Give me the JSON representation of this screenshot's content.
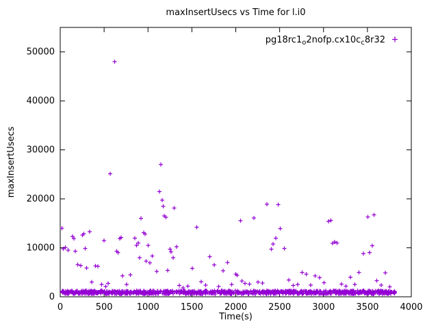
{
  "page": {
    "title": "maxInsertUsecs vs Time for l.i0"
  },
  "chart_data": {
    "type": "scatter",
    "title": "maxInsertUsecs vs Time for l.i0",
    "xlabel": "Time(s)",
    "ylabel": "maxInsertUsecs",
    "xlim": [
      0,
      4000
    ],
    "ylim": [
      0,
      55000
    ],
    "x_ticks": [
      0,
      500,
      1000,
      1500,
      2000,
      2500,
      3000,
      3500,
      4000
    ],
    "y_ticks": [
      0,
      10000,
      20000,
      30000,
      40000,
      50000
    ],
    "grid": false,
    "legend_position": "top-right-inside",
    "border_color": "#000000",
    "series": [
      {
        "name": "pg18rc1_o2nofp.cx10c_c8r32",
        "name_segments": [
          {
            "text": "pg18rc1",
            "sub": false
          },
          {
            "text": "o",
            "sub": true
          },
          {
            "text": "2nofp.cx10c",
            "sub": false
          },
          {
            "text": "c",
            "sub": true
          },
          {
            "text": "8r32",
            "sub": false
          }
        ],
        "marker": "plus",
        "color": "#9400d3",
        "outliers": [
          [
            20,
            14000
          ],
          [
            35,
            9800
          ],
          [
            60,
            10100
          ],
          [
            90,
            9500
          ],
          [
            140,
            12300
          ],
          [
            155,
            11900
          ],
          [
            170,
            9300
          ],
          [
            200,
            6600
          ],
          [
            235,
            6400
          ],
          [
            255,
            12600
          ],
          [
            270,
            12900
          ],
          [
            285,
            9900
          ],
          [
            300,
            5900
          ],
          [
            335,
            13300
          ],
          [
            360,
            3000
          ],
          [
            400,
            6300
          ],
          [
            430,
            6200
          ],
          [
            470,
            2500
          ],
          [
            500,
            11500
          ],
          [
            520,
            2100
          ],
          [
            545,
            2700
          ],
          [
            570,
            25100
          ],
          [
            620,
            48000
          ],
          [
            645,
            9300
          ],
          [
            660,
            9000
          ],
          [
            680,
            11900
          ],
          [
            695,
            12100
          ],
          [
            710,
            4300
          ],
          [
            755,
            2500
          ],
          [
            800,
            4500
          ],
          [
            850,
            12000
          ],
          [
            870,
            10500
          ],
          [
            890,
            11000
          ],
          [
            905,
            8000
          ],
          [
            920,
            16000
          ],
          [
            950,
            13100
          ],
          [
            965,
            12800
          ],
          [
            980,
            7300
          ],
          [
            1000,
            10500
          ],
          [
            1020,
            6900
          ],
          [
            1050,
            8300
          ],
          [
            1100,
            5200
          ],
          [
            1130,
            21500
          ],
          [
            1145,
            27000
          ],
          [
            1160,
            19700
          ],
          [
            1175,
            18500
          ],
          [
            1185,
            16500
          ],
          [
            1205,
            16200
          ],
          [
            1225,
            5400
          ],
          [
            1250,
            9700
          ],
          [
            1265,
            9200
          ],
          [
            1285,
            8000
          ],
          [
            1300,
            18100
          ],
          [
            1325,
            10200
          ],
          [
            1355,
            2300
          ],
          [
            1400,
            1800
          ],
          [
            1455,
            2200
          ],
          [
            1505,
            5800
          ],
          [
            1555,
            14200
          ],
          [
            1605,
            3100
          ],
          [
            1655,
            2400
          ],
          [
            1705,
            8200
          ],
          [
            1755,
            6500
          ],
          [
            1805,
            2100
          ],
          [
            1855,
            5300
          ],
          [
            1905,
            7000
          ],
          [
            1955,
            2500
          ],
          [
            2000,
            4600
          ],
          [
            2015,
            4400
          ],
          [
            2055,
            15500
          ],
          [
            2070,
            3200
          ],
          [
            2105,
            2700
          ],
          [
            2155,
            2600
          ],
          [
            2205,
            16100
          ],
          [
            2255,
            3000
          ],
          [
            2305,
            2800
          ],
          [
            2355,
            18900
          ],
          [
            2405,
            9700
          ],
          [
            2425,
            10800
          ],
          [
            2455,
            12000
          ],
          [
            2485,
            18800
          ],
          [
            2505,
            13900
          ],
          [
            2555,
            9900
          ],
          [
            2605,
            3400
          ],
          [
            2655,
            2300
          ],
          [
            2705,
            2500
          ],
          [
            2755,
            5000
          ],
          [
            2805,
            4600
          ],
          [
            2855,
            2400
          ],
          [
            2905,
            4300
          ],
          [
            2955,
            3900
          ],
          [
            3005,
            2900
          ],
          [
            3055,
            15400
          ],
          [
            3085,
            15600
          ],
          [
            3105,
            10900
          ],
          [
            3125,
            11200
          ],
          [
            3155,
            11000
          ],
          [
            3205,
            2600
          ],
          [
            3255,
            2200
          ],
          [
            3305,
            4000
          ],
          [
            3355,
            2500
          ],
          [
            3405,
            5000
          ],
          [
            3455,
            8800
          ],
          [
            3505,
            16300
          ],
          [
            3525,
            9000
          ],
          [
            3555,
            10400
          ],
          [
            3575,
            16700
          ],
          [
            3605,
            3300
          ],
          [
            3655,
            2400
          ],
          [
            3705,
            4900
          ],
          [
            3755,
            2000
          ]
        ],
        "baseline_band": {
          "x_min": 5,
          "x_max": 3820,
          "y_min": 550,
          "y_max": 1250,
          "count": 900,
          "seed": 1234,
          "note": "dense band of samples hugging ~600-1250 usecs across the whole run"
        }
      }
    ]
  }
}
